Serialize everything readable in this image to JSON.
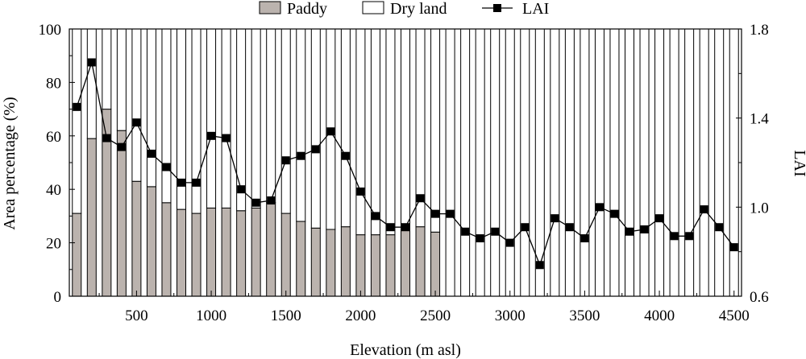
{
  "chart_data": {
    "type": "bar",
    "stacking": "100%",
    "xlabel": "Elevation (m asl)",
    "ylabel": "Area percentage (%)",
    "y2label": "LAI",
    "ylim": [
      0,
      100
    ],
    "y2lim": [
      0.6,
      1.8
    ],
    "xlim": [
      50,
      4550
    ],
    "yticks": [
      0,
      20,
      40,
      60,
      80,
      100
    ],
    "y2ticks": [
      "0.6",
      "1.0",
      "1.4",
      "1.8"
    ],
    "xticks": [
      500,
      1000,
      1500,
      2000,
      2500,
      3000,
      3500,
      4000,
      4500
    ],
    "legend_position": "top",
    "colors": {
      "paddy": "#bbb3ae",
      "dry_land": "#ffffff",
      "lai": "#000000"
    },
    "x": [
      100,
      200,
      300,
      400,
      500,
      600,
      700,
      800,
      900,
      1000,
      1100,
      1200,
      1300,
      1400,
      1500,
      1600,
      1700,
      1800,
      1900,
      2000,
      2100,
      2200,
      2300,
      2400,
      2500,
      2600,
      2700,
      2800,
      2900,
      3000,
      3100,
      3200,
      3300,
      3400,
      3500,
      3600,
      3700,
      3800,
      3900,
      4000,
      4100,
      4200,
      4300,
      4400,
      4500
    ],
    "series": [
      {
        "name": "Paddy",
        "kind": "bar",
        "axis": "left",
        "values": [
          31,
          59,
          70,
          62,
          43,
          41,
          35,
          32.5,
          31,
          33,
          33,
          32,
          33,
          35,
          31,
          28,
          25.5,
          25,
          26,
          23,
          23,
          23,
          25,
          26,
          24,
          0,
          0,
          0,
          0,
          0,
          0,
          0,
          0,
          0,
          0,
          0,
          0,
          0,
          0,
          0,
          0,
          0,
          0,
          0,
          0
        ]
      },
      {
        "name": "Dry land",
        "kind": "bar",
        "axis": "left",
        "values": [
          69,
          41,
          30,
          38,
          57,
          59,
          65,
          67.5,
          69,
          67,
          67,
          68,
          67,
          65,
          69,
          72,
          74.5,
          75,
          74,
          77,
          77,
          77,
          75,
          74,
          76,
          100,
          100,
          100,
          100,
          100,
          100,
          100,
          100,
          100,
          100,
          100,
          100,
          100,
          100,
          100,
          100,
          100,
          100,
          100,
          100
        ]
      },
      {
        "name": "LAI",
        "kind": "line",
        "axis": "right",
        "values": [
          1.45,
          1.65,
          1.31,
          1.27,
          1.38,
          1.24,
          1.18,
          1.11,
          1.11,
          1.32,
          1.31,
          1.08,
          1.02,
          1.03,
          1.21,
          1.23,
          1.26,
          1.34,
          1.23,
          1.07,
          0.96,
          0.91,
          0.91,
          1.04,
          0.97,
          0.97,
          0.89,
          0.86,
          0.89,
          0.84,
          0.91,
          0.74,
          0.95,
          0.91,
          0.86,
          1.0,
          0.97,
          0.89,
          0.9,
          0.95,
          0.87,
          0.87,
          0.99,
          0.91,
          0.82
        ]
      }
    ]
  }
}
